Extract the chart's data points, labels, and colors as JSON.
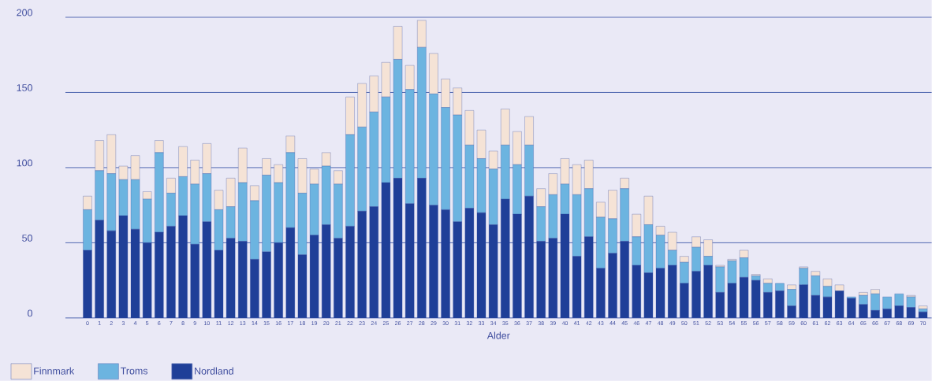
{
  "chart_data": {
    "type": "bar",
    "stacked": true,
    "xlabel": "Alder",
    "categories": [
      "0",
      "1",
      "2",
      "3",
      "4",
      "5",
      "6",
      "7",
      "8",
      "9",
      "10",
      "11",
      "12",
      "13",
      "14",
      "15",
      "16",
      "17",
      "18",
      "19",
      "20",
      "21",
      "22",
      "23",
      "24",
      "25",
      "26",
      "27",
      "28",
      "29",
      "30",
      "31",
      "32",
      "33",
      "34",
      "35",
      "36",
      "37",
      "38",
      "39",
      "40",
      "41",
      "42",
      "43",
      "44",
      "45",
      "46",
      "47",
      "48",
      "49",
      "50",
      "51",
      "52",
      "53",
      "54",
      "55",
      "56",
      "57",
      "58",
      "59",
      "60",
      "61",
      "62",
      "63",
      "64",
      "65",
      "66",
      "67",
      "68",
      "69",
      "70"
    ],
    "series": [
      {
        "name": "Nordland",
        "color": "#1f3f98",
        "values": [
          45,
          65,
          58,
          68,
          59,
          50,
          57,
          61,
          68,
          49,
          64,
          45,
          53,
          51,
          39,
          44,
          50,
          60,
          42,
          55,
          62,
          53,
          61,
          71,
          74,
          90,
          93,
          76,
          93,
          75,
          72,
          64,
          73,
          70,
          62,
          79,
          69,
          81,
          51,
          53,
          69,
          41,
          54,
          33,
          43,
          51,
          35,
          30,
          33,
          35,
          23,
          31,
          35,
          17,
          23,
          27,
          25,
          17,
          18,
          8,
          22,
          15,
          14,
          18,
          13,
          9,
          5,
          6,
          8,
          7,
          4
        ]
      },
      {
        "name": "Troms",
        "color": "#6cb4e0",
        "values": [
          27,
          33,
          38,
          24,
          33,
          29,
          53,
          22,
          26,
          40,
          32,
          27,
          21,
          39,
          39,
          51,
          40,
          50,
          41,
          34,
          39,
          36,
          61,
          56,
          63,
          57,
          79,
          76,
          87,
          74,
          68,
          71,
          42,
          36,
          37,
          36,
          33,
          34,
          23,
          29,
          20,
          41,
          32,
          34,
          23,
          35,
          19,
          32,
          22,
          10,
          14,
          16,
          6,
          17,
          15,
          13,
          3,
          6,
          5,
          11,
          11,
          13,
          7,
          0,
          1,
          6,
          11,
          8,
          8,
          7,
          2
        ]
      },
      {
        "name": "Finnmark",
        "color": "#f5e3d6",
        "values": [
          9,
          20,
          26,
          9,
          16,
          5,
          8,
          10,
          20,
          16,
          20,
          13,
          19,
          23,
          10,
          11,
          12,
          11,
          23,
          10,
          9,
          9,
          25,
          29,
          24,
          23,
          22,
          16,
          18,
          27,
          19,
          18,
          23,
          19,
          12,
          24,
          22,
          19,
          12,
          14,
          17,
          20,
          19,
          10,
          19,
          7,
          15,
          19,
          6,
          12,
          4,
          7,
          11,
          1,
          1,
          5,
          1,
          3,
          0,
          3,
          1,
          3,
          5,
          4,
          0,
          2,
          3,
          0,
          0,
          1,
          2
        ]
      }
    ],
    "ylim": [
      0,
      200
    ],
    "yticks": [
      0,
      50,
      100,
      150,
      200
    ],
    "grid": "y",
    "legend": "bottom"
  }
}
